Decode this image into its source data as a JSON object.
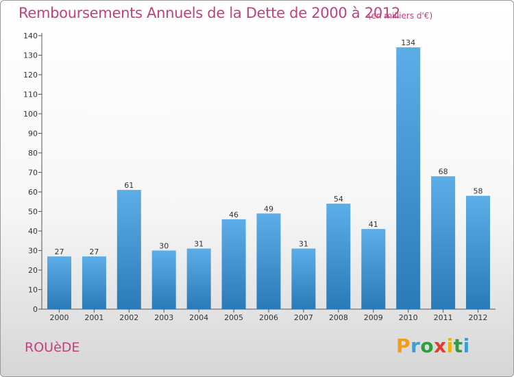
{
  "header": {
    "title": "Remboursements Annuels de la Dette de 2000 à 2012",
    "subtitle": "(en milliers d'€)"
  },
  "footer": {
    "town": "ROUèDE",
    "logo": {
      "letters": [
        "P",
        "r",
        "o",
        "x",
        "i",
        "t",
        "i"
      ],
      "colors": [
        "#f39c1a",
        "#3a9fd8",
        "#2e9e3a",
        "#e53c2e",
        "#f0b400",
        "#2e9e3a",
        "#3a9fd8"
      ]
    }
  },
  "colors": {
    "title": "#c2407e",
    "bar_top": "#5dade8",
    "bar_bottom": "#2a7ab8",
    "axis": "#555555",
    "grid": "#cccccc"
  },
  "chart_data": {
    "type": "bar",
    "title": "Remboursements Annuels de la Dette de 2000 à 2012",
    "subtitle": "(en milliers d'€)",
    "categories": [
      "2000",
      "2001",
      "2002",
      "2003",
      "2004",
      "2005",
      "2006",
      "2007",
      "2008",
      "2009",
      "2010",
      "2011",
      "2012"
    ],
    "values": [
      27,
      27,
      61,
      30,
      31,
      46,
      49,
      31,
      54,
      41,
      134,
      68,
      58
    ],
    "ylim": [
      0,
      140
    ],
    "yticks": [
      0,
      10,
      20,
      30,
      40,
      50,
      60,
      70,
      80,
      90,
      100,
      110,
      120,
      130,
      140
    ],
    "xlabel": "",
    "ylabel": "",
    "grid": false,
    "data_labels": true
  }
}
